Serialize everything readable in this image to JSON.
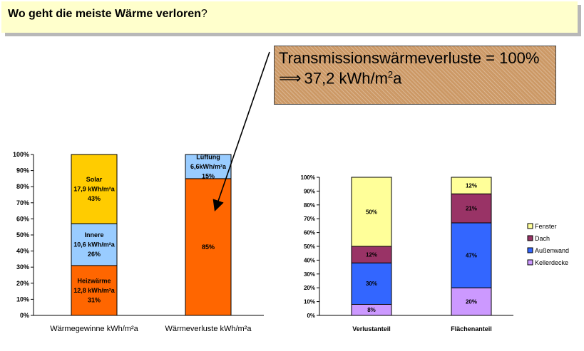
{
  "title": {
    "text": "Wo geht die meiste Wärme verloren",
    "punct": "?"
  },
  "callout": {
    "line1": "Transmissionswärmeverluste = 100%",
    "arrow": "⟹",
    "line2_a": "37,2 kWh/m",
    "line2_sup": "2",
    "line2_b": "a"
  },
  "chart_data": [
    {
      "type": "bar",
      "stacked": true,
      "categories": [
        "Wärmegewinne kWh/m²a",
        "Wärmeverluste kWh/m²a"
      ],
      "ylim": [
        0,
        100
      ],
      "y_ticks": [
        "0%",
        "10%",
        "20%",
        "30%",
        "40%",
        "50%",
        "60%",
        "70%",
        "80%",
        "90%",
        "100%"
      ],
      "grid": false,
      "series": [
        {
          "name": "Heizwärme",
          "color": "#ff6600",
          "values": [
            31,
            85
          ],
          "labels": [
            [
              "Heizwärme",
              "12,8 kWh/m²a",
              "31%"
            ],
            [
              "85%"
            ]
          ]
        },
        {
          "name": "Innere",
          "color": "#99ccff",
          "values": [
            26,
            15
          ],
          "labels": [
            [
              "Innere",
              "10,6 kWh/m²a",
              "26%"
            ],
            [
              "Lüftung",
              "6,6kWh/m²a",
              "15%"
            ]
          ]
        },
        {
          "name": "Solar",
          "color": "#ffcc00",
          "values": [
            43,
            0
          ],
          "labels": [
            [
              "Solar",
              "17,9 kWh/m²a",
              "43%"
            ],
            []
          ]
        }
      ]
    },
    {
      "type": "bar",
      "stacked": true,
      "categories": [
        "Verlustanteil",
        "Flächenanteil"
      ],
      "ylim": [
        0,
        100
      ],
      "y_ticks": [
        "0%",
        "10%",
        "20%",
        "30%",
        "40%",
        "50%",
        "60%",
        "70%",
        "80%",
        "90%",
        "100%"
      ],
      "grid": false,
      "legend_position": "right",
      "series": [
        {
          "name": "Kellerdecke",
          "color": "#cc99ff",
          "values": [
            8,
            20
          ],
          "labels": [
            "8%",
            "20%"
          ]
        },
        {
          "name": "Außenwand",
          "color": "#3366ff",
          "values": [
            30,
            47
          ],
          "labels": [
            "30%",
            "47%"
          ]
        },
        {
          "name": "Dach",
          "color": "#993366",
          "values": [
            12,
            21
          ],
          "labels": [
            "12%",
            "21%"
          ]
        },
        {
          "name": "Fenster",
          "color": "#ffff99",
          "values": [
            50,
            12
          ],
          "labels": [
            "50%",
            "12%"
          ]
        }
      ]
    }
  ]
}
